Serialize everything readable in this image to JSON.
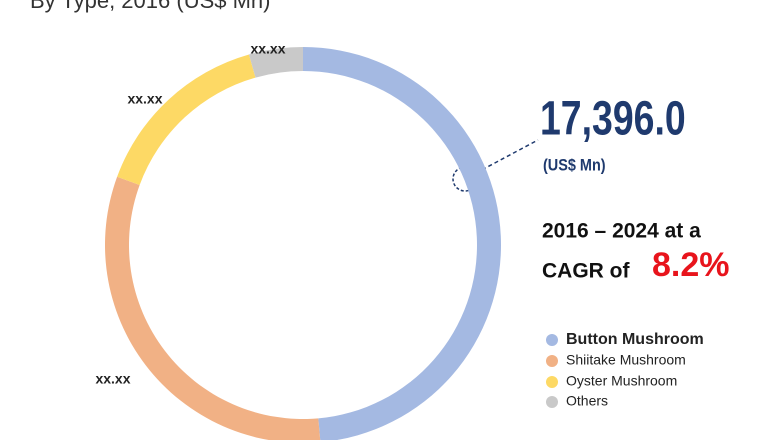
{
  "chart_data": {
    "type": "donut",
    "title": "By Type, 2016 (US$ Mn)",
    "categories": [
      "Button Mushroom",
      "Shiitake Mushroom",
      "Oyster Mushroom",
      "Others"
    ],
    "values": [
      48.6,
      32,
      15,
      4.4
    ],
    "colors": [
      "#a4b9e2",
      "#f1b185",
      "#fdd965",
      "#c9c9c9"
    ],
    "slice_labels": [
      null,
      "xx.xx",
      "xx.xx",
      "xx.xx"
    ],
    "total_value": "17,396.0",
    "total_unit": "(US$ Mn)",
    "cagr_line1": "2016 – 2024 at a",
    "cagr_line2": "CAGR of",
    "cagr_value": "8.2%",
    "legend": "right"
  }
}
